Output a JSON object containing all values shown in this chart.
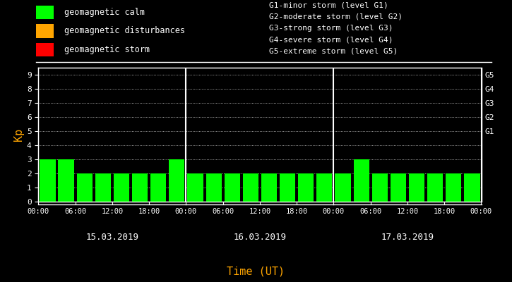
{
  "background_color": "#000000",
  "plot_bg_color": "#000000",
  "text_color": "#ffffff",
  "orange_color": "#ffa500",
  "bar_color_calm": "#00ff00",
  "bar_color_disturbance": "#ffa500",
  "bar_color_storm": "#ff0000",
  "days": [
    "15.03.2019",
    "16.03.2019",
    "17.03.2019"
  ],
  "kp_values": [
    3,
    3,
    2,
    2,
    2,
    2,
    2,
    3,
    2,
    2,
    2,
    2,
    2,
    2,
    2,
    2,
    2,
    3,
    2,
    2,
    2,
    2,
    2,
    2
  ],
  "ylim": [
    0,
    9.5
  ],
  "yticks": [
    0,
    1,
    2,
    3,
    4,
    5,
    6,
    7,
    8,
    9
  ],
  "g_labels": [
    "G1",
    "G2",
    "G3",
    "G4",
    "G5"
  ],
  "g_levels": [
    5,
    6,
    7,
    8,
    9
  ],
  "legend_items": [
    {
      "label": "geomagnetic calm",
      "color": "#00ff00"
    },
    {
      "label": "geomagnetic disturbances",
      "color": "#ffa500"
    },
    {
      "label": "geomagnetic storm",
      "color": "#ff0000"
    }
  ],
  "legend_text_right": [
    "G1-minor storm (level G1)",
    "G2-moderate storm (level G2)",
    "G3-strong storm (level G3)",
    "G4-severe storm (level G4)",
    "G5-extreme storm (level G5)"
  ],
  "xlabel": "Time (UT)",
  "ylabel": "Kp",
  "bar_width": 0.85
}
